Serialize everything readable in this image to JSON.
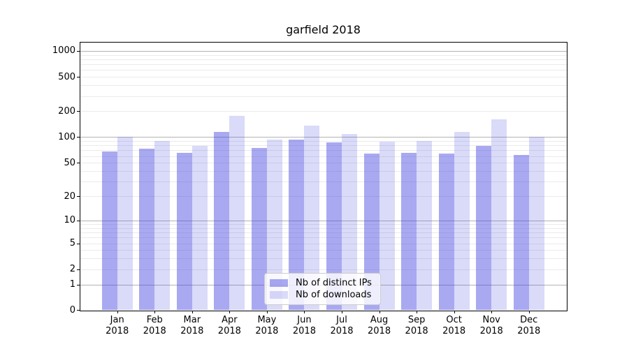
{
  "chart_data": {
    "type": "bar",
    "title": "garfield 2018",
    "x_categories": [
      "Jan",
      "Feb",
      "Mar",
      "Apr",
      "May",
      "Jun",
      "Jul",
      "Aug",
      "Sep",
      "Oct",
      "Nov",
      "Dec"
    ],
    "x_year_label": "2018",
    "series": [
      {
        "name": "Nb of distinct IPs",
        "color": "rgba(60,60,223,0.44)",
        "values": [
          68,
          73,
          66,
          114,
          75,
          94,
          86,
          64,
          65,
          64,
          79,
          62
        ]
      },
      {
        "name": "Nb of downloads",
        "color": "rgba(60,60,223,0.19)",
        "values": [
          100,
          90,
          79,
          178,
          94,
          137,
          108,
          89,
          90,
          114,
          162,
          101
        ]
      }
    ],
    "y_axis": {
      "scale": "log1p",
      "tick_values": [
        0,
        1,
        2,
        5,
        10,
        20,
        50,
        100,
        200,
        500,
        1000
      ],
      "top_value": 1250
    },
    "grid": {
      "major_values": [
        1,
        10,
        100,
        1000
      ],
      "minor_values": [
        2,
        3,
        4,
        5,
        6,
        7,
        8,
        9,
        20,
        30,
        40,
        50,
        60,
        70,
        80,
        90,
        200,
        300,
        400,
        500,
        600,
        700,
        800,
        900
      ],
      "major_color": "#b3b3b3",
      "minor_color": "#ebebeb"
    },
    "legend": {
      "position": "lower center"
    }
  }
}
